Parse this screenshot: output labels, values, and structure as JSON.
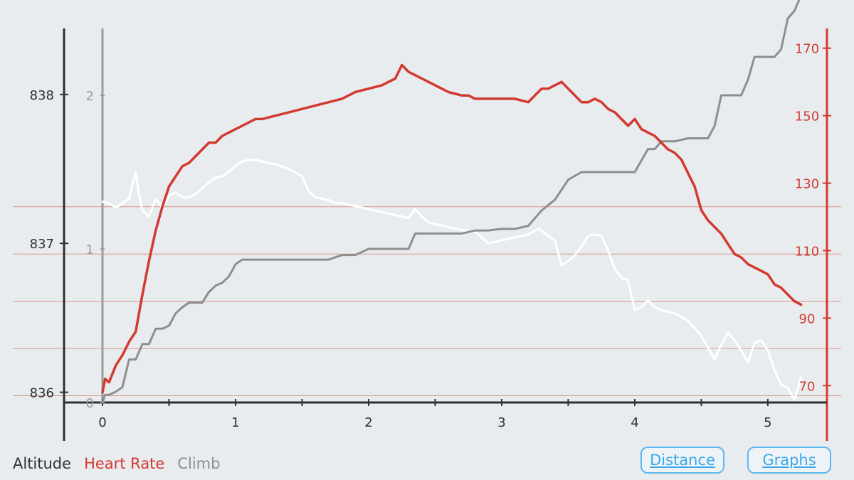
{
  "colors": {
    "background": "#e9ecef",
    "axis_dark": "#2f3033",
    "heart_rate": "#d23a30",
    "altitude": "#ffffff",
    "climb": "#8e8e8e",
    "climb_axis": "#9a9a9a",
    "button_blue": "#39a8ea"
  },
  "chart_data": {
    "type": "line",
    "x_axis": {
      "range": [
        0,
        5.3
      ],
      "ticks": [
        0,
        1,
        2,
        3,
        4,
        5
      ],
      "minor_step": 0.5
    },
    "left_axis": {
      "range": [
        835.85,
        838.3
      ],
      "ticks": [
        836,
        837,
        838
      ]
    },
    "climb_axis": {
      "range": [
        0,
        2.25
      ],
      "ticks": [
        0,
        1,
        2
      ]
    },
    "right_axis": {
      "range": [
        65,
        171
      ],
      "ticks": [
        70,
        90,
        110,
        130,
        150,
        170
      ]
    },
    "hr_zone_lines": [
      67,
      81,
      95,
      109,
      123
    ],
    "series": [
      {
        "name": "Altitude",
        "axis": "left",
        "x": [
          0,
          0.05,
          0.1,
          0.15,
          0.2,
          0.25,
          0.27,
          0.3,
          0.35,
          0.4,
          0.45,
          0.5,
          0.55,
          0.6,
          0.65,
          0.7,
          0.75,
          0.8,
          0.85,
          0.9,
          0.95,
          1.0,
          1.05,
          1.1,
          1.15,
          1.2,
          1.3,
          1.4,
          1.5,
          1.55,
          1.6,
          1.7,
          1.75,
          1.8,
          1.9,
          2.0,
          2.1,
          2.2,
          2.3,
          2.35,
          2.4,
          2.45,
          2.5,
          2.6,
          2.7,
          2.8,
          2.9,
          3.0,
          3.1,
          3.2,
          3.28,
          3.35,
          3.4,
          3.45,
          3.5,
          3.55,
          3.6,
          3.65,
          3.7,
          3.75,
          3.8,
          3.85,
          3.9,
          3.95,
          4.0,
          4.05,
          4.1,
          4.15,
          4.2,
          4.3,
          4.4,
          4.5,
          4.55,
          4.6,
          4.65,
          4.7,
          4.75,
          4.8,
          4.85,
          4.9,
          4.95,
          5.0,
          5.05,
          5.1,
          5.15,
          5.2,
          5.25
        ],
        "y": [
          837.28,
          837.27,
          837.24,
          837.27,
          837.3,
          837.48,
          837.35,
          837.22,
          837.18,
          837.3,
          837.24,
          837.32,
          837.34,
          837.31,
          837.31,
          837.33,
          837.37,
          837.41,
          837.44,
          837.45,
          837.48,
          837.52,
          837.55,
          837.56,
          837.56,
          837.55,
          837.53,
          837.5,
          837.45,
          837.35,
          837.31,
          837.29,
          837.27,
          837.27,
          837.25,
          837.23,
          837.21,
          837.19,
          837.17,
          837.23,
          837.18,
          837.14,
          837.13,
          837.11,
          837.09,
          837.08,
          837.0,
          837.02,
          837.04,
          837.06,
          837.1,
          837.05,
          837.02,
          836.85,
          836.88,
          836.92,
          836.98,
          837.05,
          837.06,
          837.05,
          836.95,
          836.83,
          836.77,
          836.75,
          836.55,
          836.57,
          836.62,
          836.57,
          836.55,
          836.53,
          836.48,
          836.38,
          836.3,
          836.22,
          836.32,
          836.4,
          836.35,
          836.28,
          836.2,
          836.33,
          836.35,
          836.28,
          836.15,
          836.05,
          836.03,
          835.95,
          836.1
        ]
      },
      {
        "name": "Heart Rate",
        "axis": "right",
        "x": [
          0,
          0.02,
          0.05,
          0.1,
          0.15,
          0.2,
          0.25,
          0.3,
          0.35,
          0.4,
          0.45,
          0.5,
          0.55,
          0.6,
          0.65,
          0.7,
          0.75,
          0.8,
          0.85,
          0.9,
          0.95,
          1.0,
          1.05,
          1.1,
          1.15,
          1.2,
          1.3,
          1.4,
          1.5,
          1.6,
          1.7,
          1.8,
          1.9,
          2.0,
          2.1,
          2.15,
          2.2,
          2.25,
          2.3,
          2.35,
          2.4,
          2.45,
          2.5,
          2.55,
          2.6,
          2.7,
          2.75,
          2.8,
          2.85,
          2.9,
          3.0,
          3.1,
          3.2,
          3.3,
          3.35,
          3.4,
          3.45,
          3.5,
          3.55,
          3.6,
          3.65,
          3.7,
          3.75,
          3.8,
          3.85,
          3.9,
          3.95,
          4.0,
          4.05,
          4.1,
          4.15,
          4.2,
          4.25,
          4.3,
          4.35,
          4.4,
          4.45,
          4.5,
          4.55,
          4.6,
          4.65,
          4.7,
          4.75,
          4.8,
          4.85,
          4.9,
          4.95,
          5.0,
          5.05,
          5.1,
          5.15,
          5.2,
          5.25
        ],
        "y": [
          68,
          72,
          71,
          76,
          79,
          83,
          86,
          97,
          107,
          116,
          123,
          129,
          132,
          135,
          136,
          138,
          140,
          142,
          142,
          144,
          145,
          146,
          147,
          148,
          149,
          149,
          150,
          151,
          152,
          153,
          154,
          155,
          157,
          158,
          159,
          160,
          161,
          165,
          163,
          162,
          161,
          160,
          159,
          158,
          157,
          156,
          156,
          155,
          155,
          155,
          155,
          155,
          154,
          158,
          158,
          159,
          160,
          158,
          156,
          154,
          154,
          155,
          154,
          152,
          151,
          149,
          147,
          149,
          146,
          145,
          144,
          142,
          140,
          139,
          137,
          133,
          129,
          122,
          119,
          117,
          115,
          112,
          109,
          108,
          106,
          105,
          104,
          103,
          100,
          99,
          97,
          95,
          94
        ]
      },
      {
        "name": "Climb",
        "axis": "climb",
        "x": [
          0,
          0.02,
          0.05,
          0.1,
          0.15,
          0.2,
          0.25,
          0.3,
          0.35,
          0.4,
          0.45,
          0.5,
          0.55,
          0.6,
          0.65,
          0.7,
          0.75,
          0.8,
          0.85,
          0.9,
          0.95,
          1.0,
          1.05,
          1.1,
          1.15,
          1.2,
          1.3,
          1.4,
          1.5,
          1.6,
          1.7,
          1.8,
          1.9,
          2.0,
          2.1,
          2.2,
          2.3,
          2.35,
          2.4,
          2.5,
          2.6,
          2.7,
          2.8,
          2.9,
          3.0,
          3.1,
          3.2,
          3.3,
          3.4,
          3.5,
          3.6,
          3.7,
          3.8,
          3.9,
          4.0,
          4.1,
          4.15,
          4.2,
          4.3,
          4.4,
          4.5,
          4.55,
          4.6,
          4.65,
          4.7,
          4.8,
          4.85,
          4.9,
          5.0,
          5.05,
          5.1,
          5.15,
          5.2,
          5.25
        ],
        "y": [
          0,
          0.05,
          0.05,
          0.07,
          0.1,
          0.28,
          0.28,
          0.38,
          0.38,
          0.48,
          0.48,
          0.5,
          0.58,
          0.62,
          0.65,
          0.65,
          0.65,
          0.72,
          0.76,
          0.78,
          0.82,
          0.9,
          0.93,
          0.93,
          0.93,
          0.93,
          0.93,
          0.93,
          0.93,
          0.93,
          0.93,
          0.96,
          0.96,
          1.0,
          1.0,
          1.0,
          1.0,
          1.1,
          1.1,
          1.1,
          1.1,
          1.1,
          1.12,
          1.12,
          1.13,
          1.13,
          1.15,
          1.25,
          1.32,
          1.45,
          1.5,
          1.5,
          1.5,
          1.5,
          1.5,
          1.65,
          1.65,
          1.7,
          1.7,
          1.72,
          1.72,
          1.72,
          1.8,
          2.0,
          2.0,
          2.0,
          2.1,
          2.25,
          2.25,
          2.25,
          2.3,
          2.5,
          2.55,
          2.65
        ]
      }
    ]
  },
  "legend": {
    "altitude": "Altitude",
    "heart_rate": "Heart Rate",
    "climb": "Climb"
  },
  "buttons": {
    "distance": "Distance",
    "graphs": "Graphs"
  }
}
